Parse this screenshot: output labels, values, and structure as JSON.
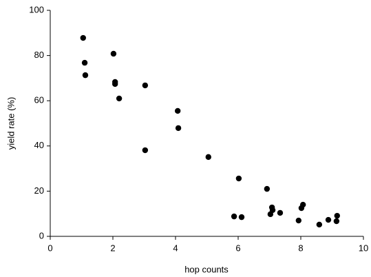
{
  "chart_data": {
    "type": "scatter",
    "x_label": "hop counts",
    "y_label": "yield rate (%)",
    "x": [
      1.05,
      1.1,
      1.12,
      2.02,
      2.07,
      2.07,
      2.2,
      3.03,
      3.03,
      4.07,
      4.09,
      5.05,
      6.02,
      5.87,
      6.11,
      6.92,
      7.08,
      7.1,
      7.03,
      7.34,
      8.07,
      8.02,
      7.93,
      8.59,
      8.88,
      9.16,
      9.14
    ],
    "series": [
      {
        "color": "#000000",
        "values": [
          87.8,
          76.8,
          71.3,
          80.8,
          68.3,
          67.4,
          61.0,
          66.8,
          38.1,
          55.5,
          47.9,
          35.1,
          25.6,
          8.8,
          8.5,
          21.0,
          12.8,
          11.6,
          9.8,
          10.4,
          14.0,
          12.5,
          7.0,
          5.2,
          7.3,
          9.1,
          6.7
        ]
      }
    ],
    "xlim": [
      0,
      10
    ],
    "xticks": [
      0,
      2,
      4,
      6,
      8,
      10
    ],
    "ylim": [
      0,
      100
    ],
    "yticks": [
      0,
      20,
      40,
      60,
      80,
      100
    ],
    "grid": false
  }
}
